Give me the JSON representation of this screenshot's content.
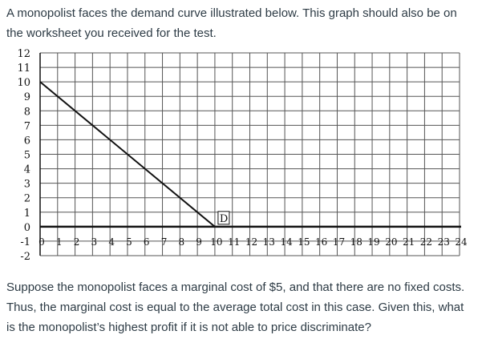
{
  "question": {
    "intro": "A monopolist faces the demand curve illustrated below. This graph should also be on the worksheet you received for the test.",
    "prompt": "Suppose the monopolist faces a marginal cost of $5, and that there are no fixed costs. Thus, the marginal cost is equal to the average total cost in this case. Given this, what is the monopolist’s highest profit if it is not able to price discriminate?"
  },
  "graph": {
    "curve_label": "D",
    "y_ticks": [
      "-2",
      "-1",
      "0",
      "1",
      "2",
      "3",
      "4",
      "5",
      "6",
      "7",
      "8",
      "9",
      "10",
      "11",
      "12"
    ],
    "x_ticks": [
      "0",
      "1",
      "2",
      "3",
      "4",
      "5",
      "6",
      "7",
      "8",
      "9",
      "10",
      "11",
      "12",
      "13",
      "14",
      "15",
      "16",
      "17",
      "18",
      "19",
      "20",
      "21",
      "22",
      "23",
      "24"
    ],
    "demand_points": [
      [
        0,
        10
      ],
      [
        10,
        0
      ]
    ],
    "colors": {
      "grid": "#555555",
      "axis": "#111111",
      "curve": "#111111"
    }
  }
}
